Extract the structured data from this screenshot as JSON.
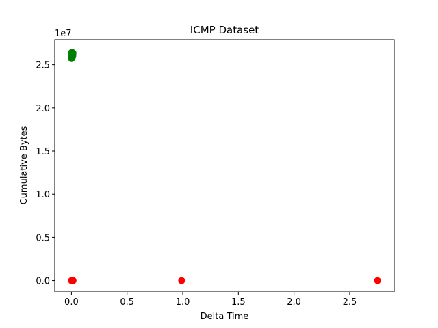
{
  "chart_data": {
    "type": "scatter",
    "title": "ICMP Dataset",
    "xlabel": "Delta Time",
    "ylabel": "Cumulative Bytes",
    "y_offset_label": "1e7",
    "y_scale_factor": 10000000,
    "xlim": [
      -0.15,
      2.9
    ],
    "ylim": [
      -1300000,
      27900000
    ],
    "x_ticks": [
      0.0,
      0.5,
      1.0,
      1.5,
      2.0,
      2.5
    ],
    "x_tick_labels": [
      "0.0",
      "0.5",
      "1.0",
      "1.5",
      "2.0",
      "2.5"
    ],
    "y_ticks": [
      0,
      5000000,
      10000000,
      15000000,
      20000000,
      25000000
    ],
    "y_tick_labels": [
      "0.0",
      "0.5",
      "1.0",
      "1.5",
      "2.0",
      "2.5"
    ],
    "grid": false,
    "series": [
      {
        "color": "#008000",
        "points": [
          [
            0.0,
            25700000
          ],
          [
            0.005,
            25800000
          ],
          [
            0.01,
            25900000
          ],
          [
            0.0,
            26000000
          ],
          [
            0.008,
            26100000
          ],
          [
            0.003,
            26200000
          ],
          [
            0.012,
            26300000
          ],
          [
            0.0,
            26400000
          ],
          [
            0.006,
            26450000
          ],
          [
            0.015,
            26350000
          ],
          [
            0.002,
            26150000
          ],
          [
            0.01,
            25950000
          ],
          [
            0.004,
            25750000
          ],
          [
            0.013,
            26050000
          ],
          [
            0.001,
            26250000
          ]
        ]
      },
      {
        "color": "#ff0000",
        "points": [
          [
            0.0,
            0
          ],
          [
            0.005,
            0
          ],
          [
            0.01,
            0
          ],
          [
            0.015,
            0
          ],
          [
            0.002,
            0
          ],
          [
            0.99,
            0
          ],
          [
            2.75,
            0
          ]
        ]
      }
    ]
  }
}
